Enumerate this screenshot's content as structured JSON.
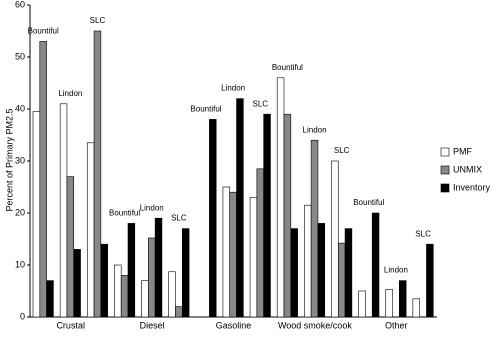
{
  "chart_data": {
    "type": "bar",
    "y_label": "Percent of Primary PM2.5",
    "category_groups": [
      "Crustal",
      "Diesel",
      "Gasoline",
      "Wood smoke/cook",
      "Other"
    ],
    "categories": [
      "Bountiful",
      "Lindon",
      "SLC",
      "Bountiful",
      "Lindon",
      "SLC",
      "Bountiful",
      "Lindon",
      "SLC",
      "Bountiful",
      "Lindon",
      "SLC",
      "Bountiful",
      "Lindon",
      "SLC"
    ],
    "series": [
      {
        "name": "PMF",
        "color": "#ffffff",
        "values": [
          39.5,
          41,
          33.5,
          10,
          7,
          8.7,
          null,
          25,
          23,
          46,
          21.5,
          30,
          5,
          5.3,
          3.5
        ]
      },
      {
        "name": "UNMIX",
        "color": "#888888",
        "values": [
          53,
          27,
          55,
          8,
          15.2,
          2,
          null,
          24,
          28.5,
          39,
          34,
          14.2,
          null,
          null,
          null
        ]
      },
      {
        "name": "Inventory",
        "color": "#000000",
        "values": [
          7,
          13,
          14,
          18,
          19,
          17,
          38,
          42,
          39,
          17,
          18,
          17,
          20,
          7,
          14
        ]
      }
    ],
    "ylim": [
      0,
      60
    ],
    "yticks": [
      0,
      10,
      20,
      30,
      40,
      50,
      60
    ],
    "legend": "right"
  }
}
